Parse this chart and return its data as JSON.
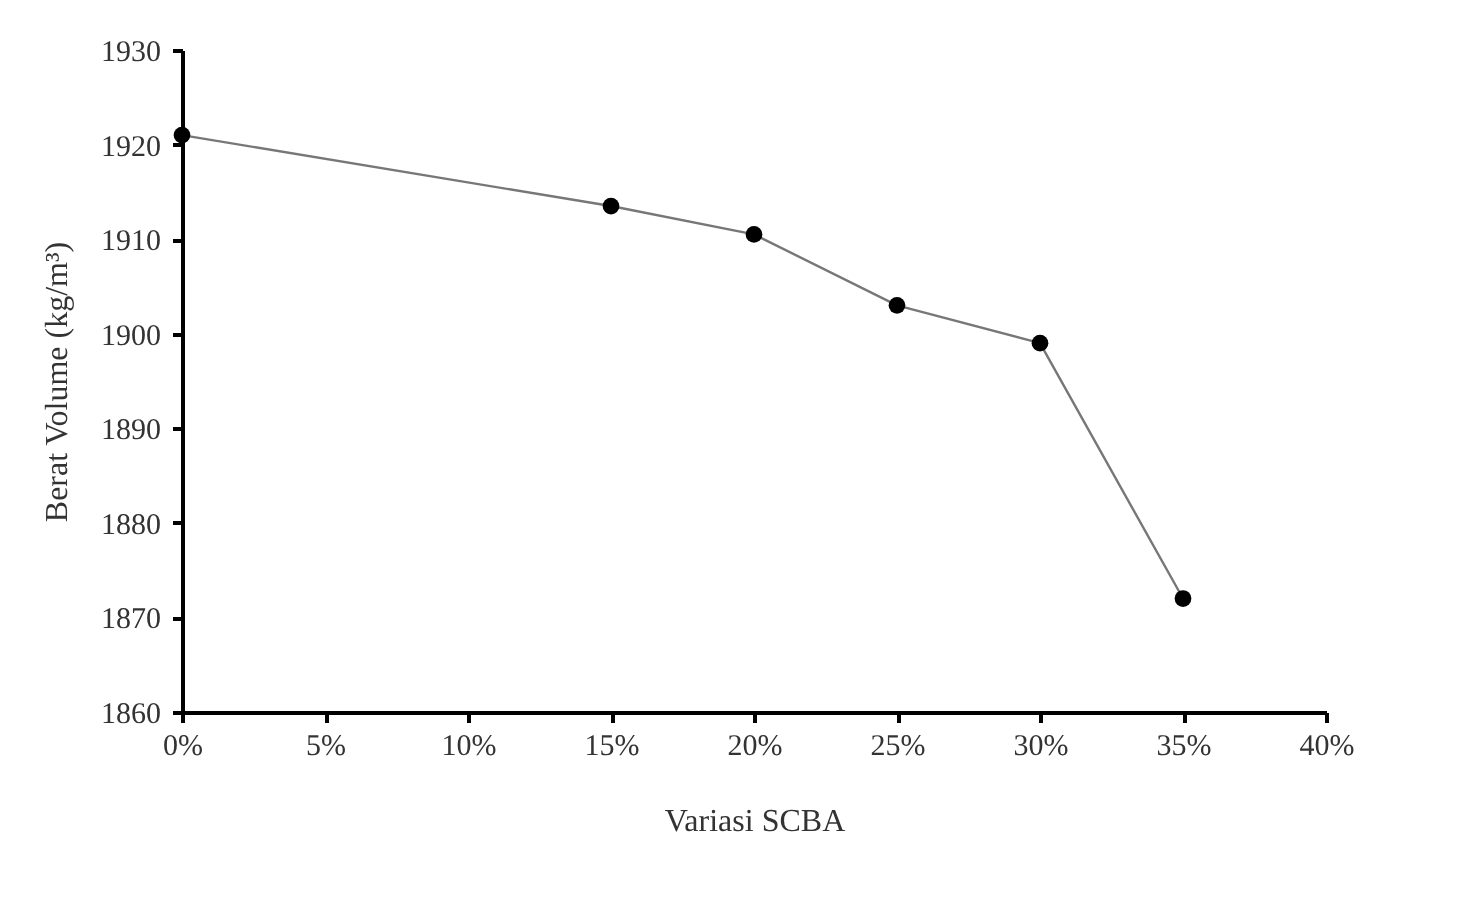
{
  "chart_data": {
    "type": "line",
    "xlabel": "Variasi SCBA",
    "ylabel": "Berat Volume (kg/m³)",
    "x": [
      0,
      15,
      20,
      25,
      30,
      35
    ],
    "series": [
      {
        "color": "#000000",
        "values": [
          1921,
          1913.5,
          1910.5,
          1903,
          1899,
          1872
        ]
      }
    ],
    "xlim": [
      0,
      40
    ],
    "xticks": [
      {
        "value": 0,
        "label": "0%"
      },
      {
        "value": 5,
        "label": "5%"
      },
      {
        "value": 10,
        "label": "10%"
      },
      {
        "value": 15,
        "label": "15%"
      },
      {
        "value": 20,
        "label": "20%"
      },
      {
        "value": 25,
        "label": "25%"
      },
      {
        "value": 30,
        "label": "30%"
      },
      {
        "value": 35,
        "label": "35%"
      },
      {
        "value": 40,
        "label": "40%"
      }
    ],
    "ylim": [
      1860,
      1930
    ],
    "yticks": [
      1860,
      1870,
      1880,
      1890,
      1900,
      1910,
      1920,
      1930
    ],
    "grid": false,
    "marker": "circle",
    "line_style": "solid"
  }
}
